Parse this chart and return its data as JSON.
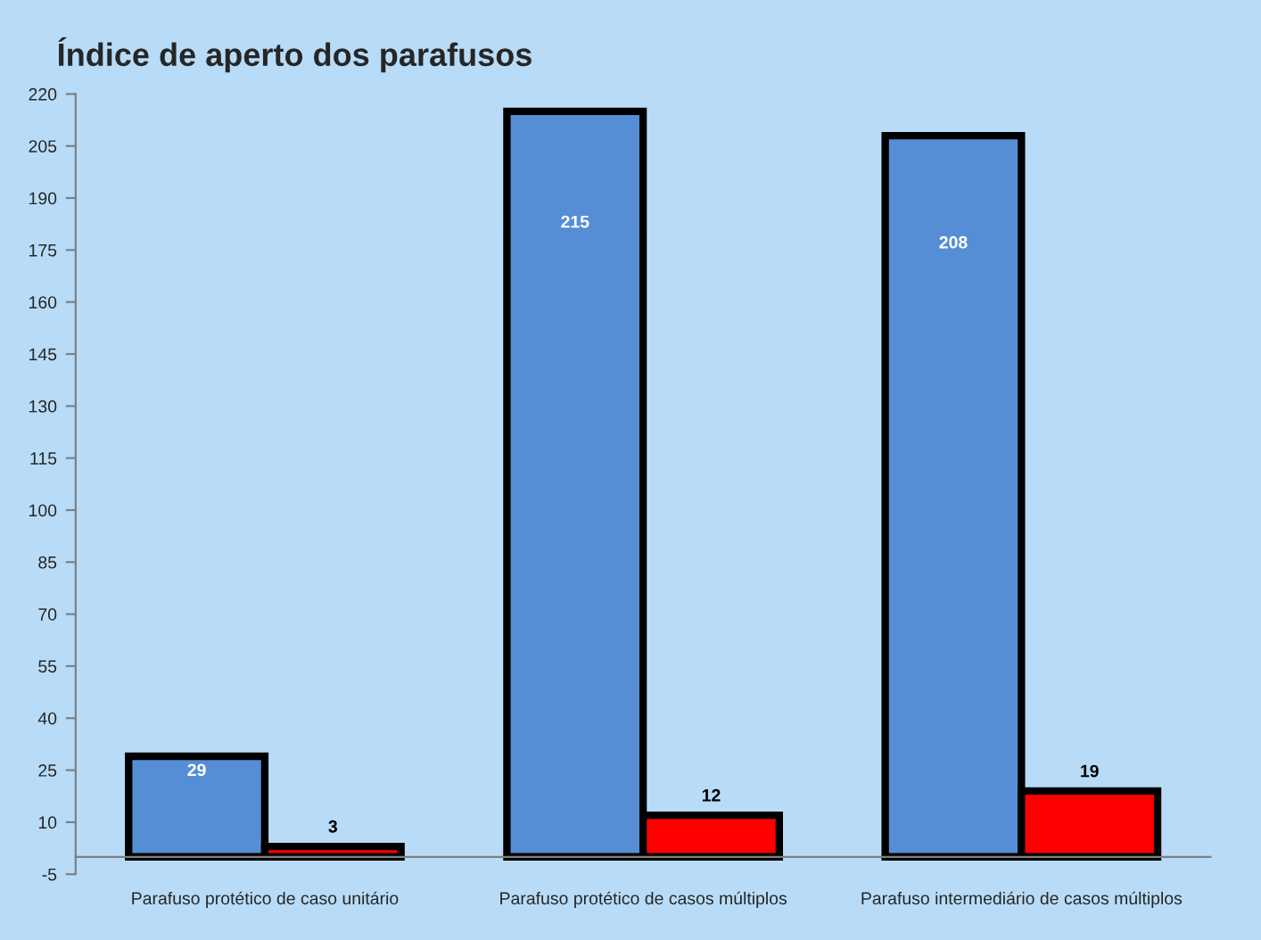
{
  "chart_data": {
    "type": "bar",
    "title": "Índice de aperto dos parafusos",
    "categories": [
      "Parafuso protético de caso unitário",
      "Parafuso protético de casos múltiplos",
      "Parafuso intermediário de casos múltiplos"
    ],
    "series": [
      {
        "color": "#558ed5",
        "values": [
          29,
          215,
          208
        ]
      },
      {
        "color": "#ff0000",
        "values": [
          3,
          12,
          19
        ]
      }
    ],
    "ylim": [
      -5,
      220
    ],
    "yticks": [
      -5,
      10,
      25,
      40,
      55,
      70,
      85,
      100,
      115,
      130,
      145,
      160,
      175,
      190,
      205,
      220
    ],
    "grid": false,
    "legend": false,
    "data_labels": true
  }
}
